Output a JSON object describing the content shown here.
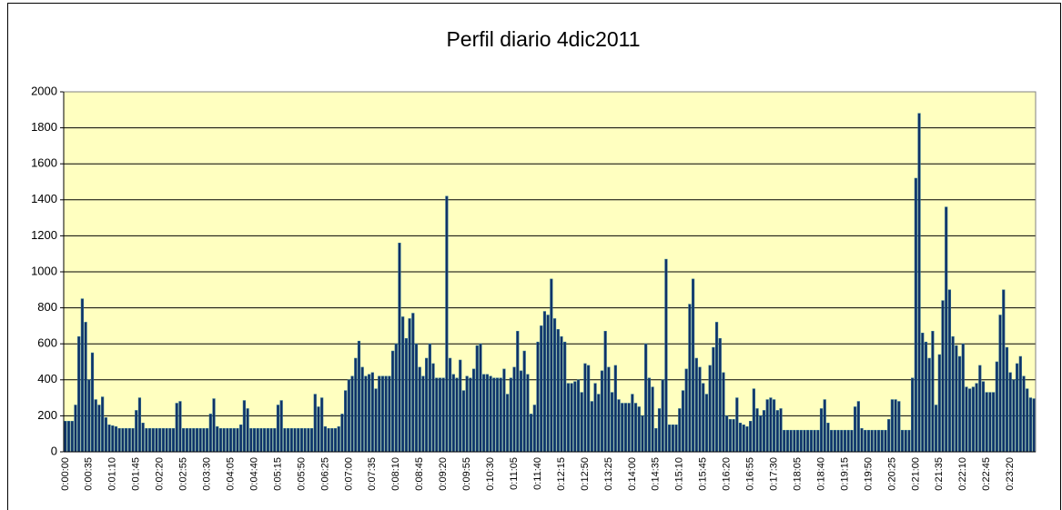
{
  "chart_data": {
    "type": "bar",
    "title": "Perfil diario 4dic2011",
    "categories": [
      "0:00:00",
      null,
      null,
      null,
      null,
      null,
      null,
      "0:00:35",
      null,
      null,
      null,
      null,
      null,
      null,
      "0:01:10",
      null,
      null,
      null,
      null,
      null,
      null,
      "0:01:45",
      null,
      null,
      null,
      null,
      null,
      null,
      "0:02:20",
      null,
      null,
      null,
      null,
      null,
      null,
      "0:02:55",
      null,
      null,
      null,
      null,
      null,
      null,
      "0:03:30",
      null,
      null,
      null,
      null,
      null,
      null,
      "0:04:05",
      null,
      null,
      null,
      null,
      null,
      null,
      "0:04:40",
      null,
      null,
      null,
      null,
      null,
      null,
      "0:05:15",
      null,
      null,
      null,
      null,
      null,
      null,
      "0:05:50",
      null,
      null,
      null,
      null,
      null,
      null,
      "0:06:25",
      null,
      null,
      null,
      null,
      null,
      null,
      "0:07:00",
      null,
      null,
      null,
      null,
      null,
      null,
      "0:07:35",
      null,
      null,
      null,
      null,
      null,
      null,
      "0:08:10",
      null,
      null,
      null,
      null,
      null,
      null,
      "0:08:45",
      null,
      null,
      null,
      null,
      null,
      null,
      "0:09:20",
      null,
      null,
      null,
      null,
      null,
      null,
      "0:09:55",
      null,
      null,
      null,
      null,
      null,
      null,
      "0:10:30",
      null,
      null,
      null,
      null,
      null,
      null,
      "0:11:05",
      null,
      null,
      null,
      null,
      null,
      null,
      "0:11:40",
      null,
      null,
      null,
      null,
      null,
      null,
      "0:12:15",
      null,
      null,
      null,
      null,
      null,
      null,
      "0:12:50",
      null,
      null,
      null,
      null,
      null,
      null,
      "0:13:25",
      null,
      null,
      null,
      null,
      null,
      null,
      "0:14:00",
      null,
      null,
      null,
      null,
      null,
      null,
      "0:14:35",
      null,
      null,
      null,
      null,
      null,
      null,
      "0:15:10",
      null,
      null,
      null,
      null,
      null,
      null,
      "0:15:45",
      null,
      null,
      null,
      null,
      null,
      null,
      "0:16:20",
      null,
      null,
      null,
      null,
      null,
      null,
      "0:16:55",
      null,
      null,
      null,
      null,
      null,
      null,
      "0:17:30",
      null,
      null,
      null,
      null,
      null,
      null,
      "0:18:05",
      null,
      null,
      null,
      null,
      null,
      null,
      "0:18:40",
      null,
      null,
      null,
      null,
      null,
      null,
      "0:19:15",
      null,
      null,
      null,
      null,
      null,
      null,
      "0:19:50",
      null,
      null,
      null,
      null,
      null,
      null,
      "0:20:25",
      null,
      null,
      null,
      null,
      null,
      null,
      "0:21:00",
      null,
      null,
      null,
      null,
      null,
      null,
      "0:21:35",
      null,
      null,
      null,
      null,
      null,
      null,
      "0:22:10",
      null,
      null,
      null,
      null,
      null,
      null,
      "0:22:45",
      null,
      null,
      null,
      null,
      null,
      null,
      "0:23:20",
      null,
      null,
      null,
      null,
      null,
      null,
      null
    ],
    "values": [
      170,
      170,
      170,
      260,
      640,
      850,
      720,
      400,
      550,
      290,
      260,
      305,
      190,
      150,
      145,
      140,
      130,
      130,
      130,
      130,
      130,
      230,
      300,
      160,
      130,
      130,
      130,
      130,
      130,
      130,
      130,
      130,
      130,
      270,
      280,
      130,
      130,
      130,
      130,
      130,
      130,
      130,
      130,
      210,
      295,
      140,
      130,
      130,
      130,
      130,
      130,
      130,
      150,
      285,
      240,
      130,
      130,
      130,
      130,
      130,
      130,
      130,
      130,
      260,
      285,
      130,
      130,
      130,
      130,
      130,
      130,
      130,
      130,
      130,
      320,
      250,
      300,
      140,
      130,
      130,
      130,
      140,
      210,
      340,
      400,
      420,
      520,
      615,
      470,
      420,
      430,
      440,
      350,
      420,
      420,
      420,
      420,
      560,
      600,
      1160,
      750,
      630,
      740,
      770,
      600,
      470,
      420,
      520,
      600,
      490,
      410,
      410,
      410,
      1420,
      520,
      430,
      410,
      510,
      340,
      420,
      410,
      460,
      590,
      600,
      430,
      430,
      420,
      410,
      410,
      410,
      460,
      320,
      410,
      470,
      670,
      450,
      560,
      430,
      210,
      260,
      610,
      700,
      780,
      760,
      960,
      740,
      680,
      640,
      610,
      380,
      380,
      390,
      400,
      330,
      490,
      480,
      280,
      380,
      320,
      450,
      670,
      470,
      330,
      480,
      290,
      270,
      270,
      270,
      320,
      270,
      250,
      200,
      600,
      410,
      360,
      130,
      240,
      400,
      1070,
      150,
      150,
      150,
      240,
      340,
      460,
      820,
      960,
      520,
      470,
      380,
      320,
      480,
      580,
      720,
      630,
      440,
      200,
      180,
      180,
      300,
      160,
      150,
      140,
      170,
      350,
      240,
      200,
      230,
      290,
      300,
      290,
      230,
      240,
      120,
      120,
      120,
      120,
      120,
      120,
      120,
      120,
      120,
      120,
      120,
      240,
      290,
      160,
      120,
      120,
      120,
      120,
      120,
      120,
      120,
      250,
      280,
      130,
      120,
      120,
      120,
      120,
      120,
      120,
      120,
      180,
      290,
      290,
      280,
      120,
      120,
      120,
      410,
      1520,
      1880,
      660,
      610,
      520,
      670,
      260,
      540,
      840,
      1360,
      900,
      640,
      590,
      530,
      600,
      360,
      350,
      360,
      380,
      480,
      390,
      330,
      330,
      330,
      500,
      760,
      900,
      580,
      440,
      400,
      490,
      530,
      420,
      350,
      300,
      295
    ],
    "color": "#0f2f66",
    "ylim": [
      0,
      2000
    ],
    "yticks": [
      0,
      200,
      400,
      600,
      800,
      1000,
      1200,
      1400,
      1600,
      1800,
      2000
    ],
    "grid": true
  }
}
